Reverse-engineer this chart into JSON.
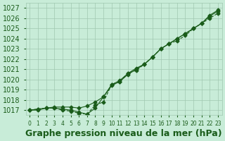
{
  "hours": [
    0,
    1,
    2,
    3,
    4,
    5,
    6,
    7,
    8,
    9,
    10,
    11,
    12,
    13,
    14,
    15,
    16,
    17,
    18,
    19,
    20,
    21,
    22,
    23
  ],
  "series1": [
    1017.0,
    1017.1,
    1017.2,
    1017.2,
    1017.0,
    1016.9,
    1016.7,
    1016.6,
    1017.5,
    1017.8,
    1019.5,
    1019.8,
    1020.6,
    1020.9,
    1021.5,
    1022.2,
    1023.0,
    1023.5,
    1023.8,
    1024.3,
    1025.0,
    1025.5,
    1026.0,
    1026.5
  ],
  "series2": [
    1017.0,
    1017.1,
    1017.2,
    1017.2,
    1017.1,
    1017.0,
    1016.8,
    1016.6,
    1017.2,
    1018.3,
    1019.4,
    1019.8,
    1020.5,
    1021.0,
    1021.5,
    1022.2,
    1023.0,
    1023.5,
    1024.0,
    1024.5,
    1025.0,
    1025.5,
    1026.2,
    1026.7
  ],
  "series3": [
    1017.0,
    1017.0,
    1017.2,
    1017.3,
    1017.3,
    1017.3,
    1017.2,
    1017.4,
    1017.8,
    1018.3,
    1019.5,
    1019.9,
    1020.6,
    1021.1,
    1021.5,
    1022.2,
    1023.0,
    1023.5,
    1024.0,
    1024.5,
    1025.0,
    1025.5,
    1026.3,
    1026.8
  ],
  "ylim": [
    1016.5,
    1027.5
  ],
  "yticks": [
    1017,
    1018,
    1019,
    1020,
    1021,
    1022,
    1023,
    1024,
    1025,
    1026,
    1027
  ],
  "bg_color": "#c8ecd8",
  "grid_color": "#a0c8b0",
  "line_color": "#1a5c1a",
  "xlabel": "Graphe pression niveau de la mer (hPa)",
  "title_fontsize": 9,
  "axis_fontsize": 7
}
